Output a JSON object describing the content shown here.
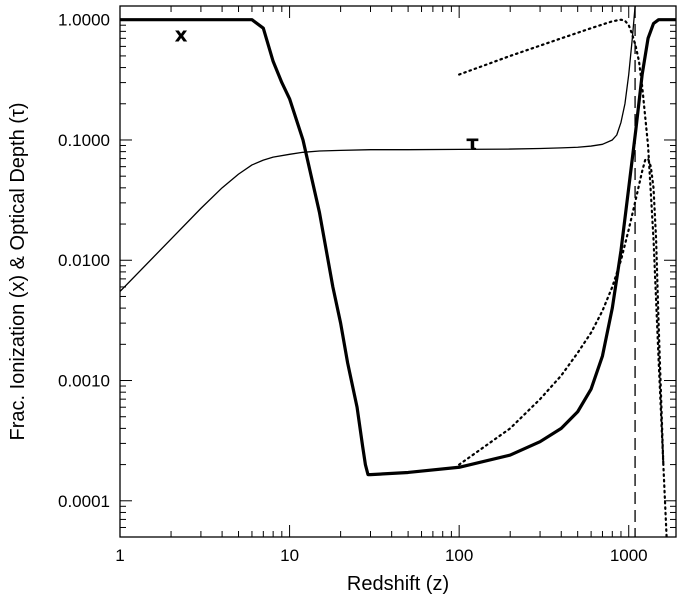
{
  "chart_data": {
    "type": "line",
    "xscale": "log",
    "yscale": "log",
    "xlim": [
      1,
      1900
    ],
    "ylim": [
      5e-05,
      1.3
    ],
    "xlabel": "Redshift (z)",
    "ylabel": "Frac. Ionization (x) & Optical Depth (τ)",
    "grid": false,
    "xticks": [
      {
        "value": 1,
        "label": "1"
      },
      {
        "value": 10,
        "label": "10"
      },
      {
        "value": 100,
        "label": "100"
      },
      {
        "value": 1000,
        "label": "1000"
      }
    ],
    "yticks": [
      {
        "value": 1,
        "label": "1.0000"
      },
      {
        "value": 0.1,
        "label": "0.1000"
      },
      {
        "value": 0.01,
        "label": "0.0100"
      },
      {
        "value": 0.001,
        "label": "0.0010"
      },
      {
        "value": 0.0001,
        "label": "0.0001"
      }
    ],
    "annotations": [
      {
        "text": "x",
        "x": 2.1,
        "y": 0.75
      },
      {
        "text": "τ",
        "x": 110,
        "y": 0.095
      }
    ],
    "vertical_lines": [
      {
        "x": 1090,
        "style": "dashed"
      }
    ],
    "series": [
      {
        "style": "thick-solid",
        "x": [
          1,
          6,
          7,
          8,
          9,
          10,
          12,
          15,
          18,
          20,
          22,
          25,
          27,
          28,
          29,
          30,
          50,
          100,
          200,
          300,
          400,
          500,
          600,
          700,
          800,
          900,
          1000,
          1100,
          1200,
          1300,
          1400,
          1500,
          1600,
          1800,
          1900
        ],
        "y": [
          1,
          1,
          0.85,
          0.45,
          0.3,
          0.22,
          0.1,
          0.025,
          0.006,
          0.003,
          0.0014,
          0.0006,
          0.00028,
          0.0002,
          0.000165,
          0.000165,
          0.000172,
          0.00019,
          0.00024,
          0.00031,
          0.0004,
          0.00055,
          0.00085,
          0.0016,
          0.004,
          0.012,
          0.04,
          0.12,
          0.35,
          0.7,
          0.93,
          1,
          1,
          1,
          1
        ]
      },
      {
        "style": "thin-solid",
        "x": [
          1,
          2,
          3,
          4,
          5,
          6,
          7,
          8,
          10,
          12,
          15,
          20,
          30,
          50,
          100,
          200,
          300,
          400,
          500,
          600,
          700,
          800,
          850,
          900,
          950,
          1000,
          1050,
          1100,
          1150
        ],
        "y": [
          0.0055,
          0.015,
          0.027,
          0.04,
          0.052,
          0.062,
          0.068,
          0.072,
          0.076,
          0.079,
          0.081,
          0.082,
          0.083,
          0.083,
          0.0835,
          0.084,
          0.085,
          0.086,
          0.087,
          0.089,
          0.092,
          0.1,
          0.11,
          0.14,
          0.2,
          0.35,
          0.7,
          1.5,
          3
        ]
      },
      {
        "style": "dotted",
        "x": [
          100,
          200,
          400,
          600,
          800,
          900,
          950,
          1000,
          1050,
          1100,
          1150,
          1200,
          1300,
          1400,
          1500,
          1600,
          1700
        ],
        "y": [
          0.35,
          0.5,
          0.7,
          0.85,
          0.97,
          1,
          0.98,
          0.9,
          0.75,
          0.6,
          0.45,
          0.28,
          0.09,
          0.015,
          0.0015,
          0.0002,
          3e-05
        ]
      },
      {
        "style": "dotted",
        "x": [
          100,
          200,
          300,
          400,
          500,
          600,
          700,
          800,
          900,
          1000,
          1100,
          1200,
          1250,
          1300,
          1350,
          1400,
          1450,
          1500,
          1600
        ],
        "y": [
          0.0002,
          0.0004,
          0.0007,
          0.0011,
          0.0017,
          0.0025,
          0.0038,
          0.006,
          0.01,
          0.018,
          0.032,
          0.055,
          0.068,
          0.07,
          0.06,
          0.04,
          0.015,
          0.003,
          0.0002
        ]
      }
    ]
  }
}
